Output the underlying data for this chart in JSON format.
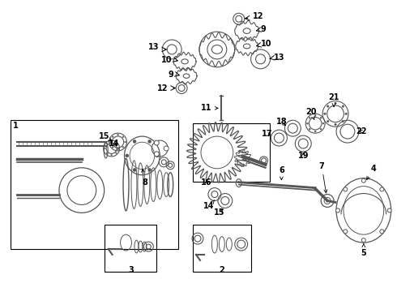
{
  "bg_color": "#ffffff",
  "fig_width": 4.9,
  "fig_height": 3.6,
  "dpi": 100,
  "label_fontsize": 7.0,
  "arrow_lw": 0.7
}
